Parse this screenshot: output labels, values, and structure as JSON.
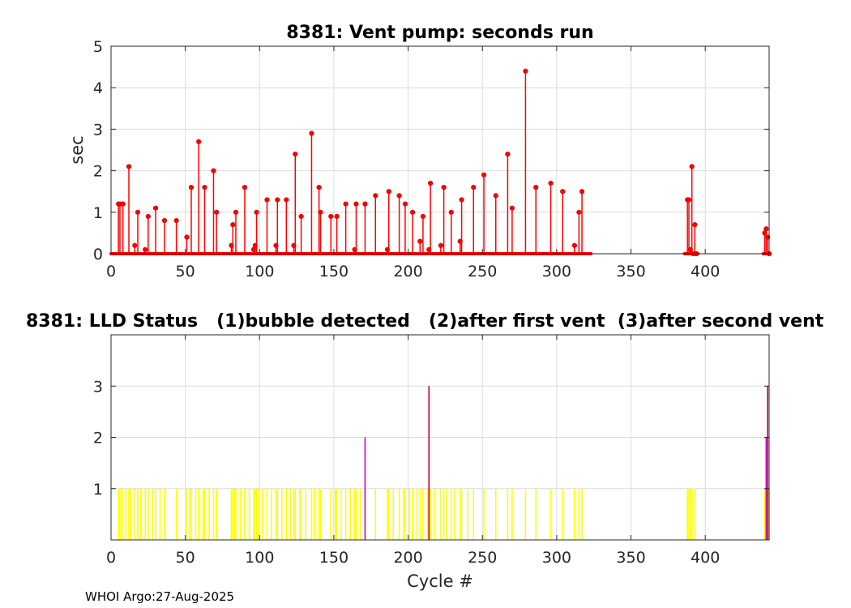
{
  "footer": "WHOI Argo:27-Aug-2025",
  "chart_data": [
    {
      "type": "stem",
      "title": "8381: Vent pump: seconds run",
      "xlabel": "",
      "ylabel": "sec",
      "xlim": [
        0,
        443
      ],
      "ylim": [
        0,
        5
      ],
      "xticks": [
        0,
        50,
        100,
        150,
        200,
        250,
        300,
        350,
        400
      ],
      "yticks": [
        0,
        1,
        2,
        3,
        4,
        5
      ],
      "grid": true,
      "color": "#ff0000",
      "points": [
        [
          5,
          1.2
        ],
        [
          6,
          1.2
        ],
        [
          8,
          1.2
        ],
        [
          12,
          2.1
        ],
        [
          16,
          0.2
        ],
        [
          18,
          1.0
        ],
        [
          23,
          0.1
        ],
        [
          25,
          0.9
        ],
        [
          30,
          1.1
        ],
        [
          36,
          0.8
        ],
        [
          44,
          0.8
        ],
        [
          51,
          0.4
        ],
        [
          54,
          1.6
        ],
        [
          59,
          2.7
        ],
        [
          63,
          1.6
        ],
        [
          69,
          2.0
        ],
        [
          71,
          1.0
        ],
        [
          81,
          0.2
        ],
        [
          82,
          0.7
        ],
        [
          84,
          1.0
        ],
        [
          90,
          1.6
        ],
        [
          96,
          0.1
        ],
        [
          97,
          0.2
        ],
        [
          98,
          1.0
        ],
        [
          105,
          1.3
        ],
        [
          111,
          0.2
        ],
        [
          112,
          1.3
        ],
        [
          118,
          1.3
        ],
        [
          123,
          0.2
        ],
        [
          124,
          2.4
        ],
        [
          128,
          0.9
        ],
        [
          135,
          2.9
        ],
        [
          140,
          1.6
        ],
        [
          141,
          1.0
        ],
        [
          148,
          0.9
        ],
        [
          152,
          0.9
        ],
        [
          158,
          1.2
        ],
        [
          164,
          0.1
        ],
        [
          165,
          1.2
        ],
        [
          171,
          1.2
        ],
        [
          178,
          1.4
        ],
        [
          186,
          0.1
        ],
        [
          187,
          1.5
        ],
        [
          194,
          1.4
        ],
        [
          198,
          1.2
        ],
        [
          203,
          1.0
        ],
        [
          208,
          0.3
        ],
        [
          210,
          0.9
        ],
        [
          214,
          0.1
        ],
        [
          215,
          1.7
        ],
        [
          222,
          0.2
        ],
        [
          224,
          1.6
        ],
        [
          229,
          1.0
        ],
        [
          235,
          0.3
        ],
        [
          236,
          1.3
        ],
        [
          244,
          1.6
        ],
        [
          251,
          1.9
        ],
        [
          259,
          1.4
        ],
        [
          267,
          2.4
        ],
        [
          270,
          1.1
        ],
        [
          279,
          4.4
        ],
        [
          286,
          1.6
        ],
        [
          296,
          1.7
        ],
        [
          304,
          1.5
        ],
        [
          312,
          0.2
        ],
        [
          315,
          1.0
        ],
        [
          317,
          1.5
        ],
        [
          388,
          1.3
        ],
        [
          389,
          1.3
        ],
        [
          390,
          0.1
        ],
        [
          391,
          2.1
        ],
        [
          392,
          0.0
        ],
        [
          393,
          0.7
        ],
        [
          394,
          0.0
        ],
        [
          440,
          0.5
        ],
        [
          441,
          0.6
        ],
        [
          442,
          0.4
        ],
        [
          443,
          0.0
        ]
      ],
      "zeros": [
        [
          0,
          323
        ],
        [
          386,
          395
        ],
        [
          439,
          443
        ]
      ]
    },
    {
      "type": "bar",
      "title": "8381: LLD Status   (1)bubble detected   (2)after first vent  (3)after second vent",
      "xlabel": "Cycle #",
      "ylabel": "",
      "xlim": [
        0,
        443
      ],
      "ylim": [
        0,
        4
      ],
      "xticks": [
        0,
        50,
        100,
        150,
        200,
        250,
        300,
        350,
        400
      ],
      "yticks": [
        1,
        2,
        3
      ],
      "grid": true,
      "series": [
        {
          "level": 1,
          "color": "#ffff00",
          "x": [
            5,
            6,
            8,
            10,
            12,
            13,
            16,
            18,
            20,
            23,
            25,
            28,
            30,
            33,
            36,
            44,
            51,
            53,
            54,
            57,
            59,
            62,
            63,
            66,
            69,
            71,
            81,
            82,
            83,
            84,
            87,
            90,
            93,
            96,
            97,
            98,
            99,
            102,
            105,
            108,
            111,
            112,
            115,
            118,
            121,
            123,
            124,
            127,
            128,
            131,
            135,
            137,
            140,
            141,
            148,
            151,
            152,
            155,
            158,
            161,
            164,
            165,
            168,
            171,
            178,
            186,
            187,
            190,
            194,
            197,
            198,
            201,
            203,
            206,
            208,
            210,
            213,
            214,
            215,
            218,
            222,
            224,
            226,
            229,
            231,
            235,
            236,
            240,
            244,
            251,
            259,
            267,
            270,
            279,
            286,
            296,
            304,
            312,
            315,
            317,
            388,
            389,
            390,
            391,
            393,
            440,
            441,
            442,
            443
          ]
        },
        {
          "level": 2,
          "color": "#cc00cc",
          "x": [
            171,
            441
          ]
        },
        {
          "level": 3,
          "color": "#cc0033",
          "x": [
            214,
            442
          ]
        }
      ]
    }
  ]
}
